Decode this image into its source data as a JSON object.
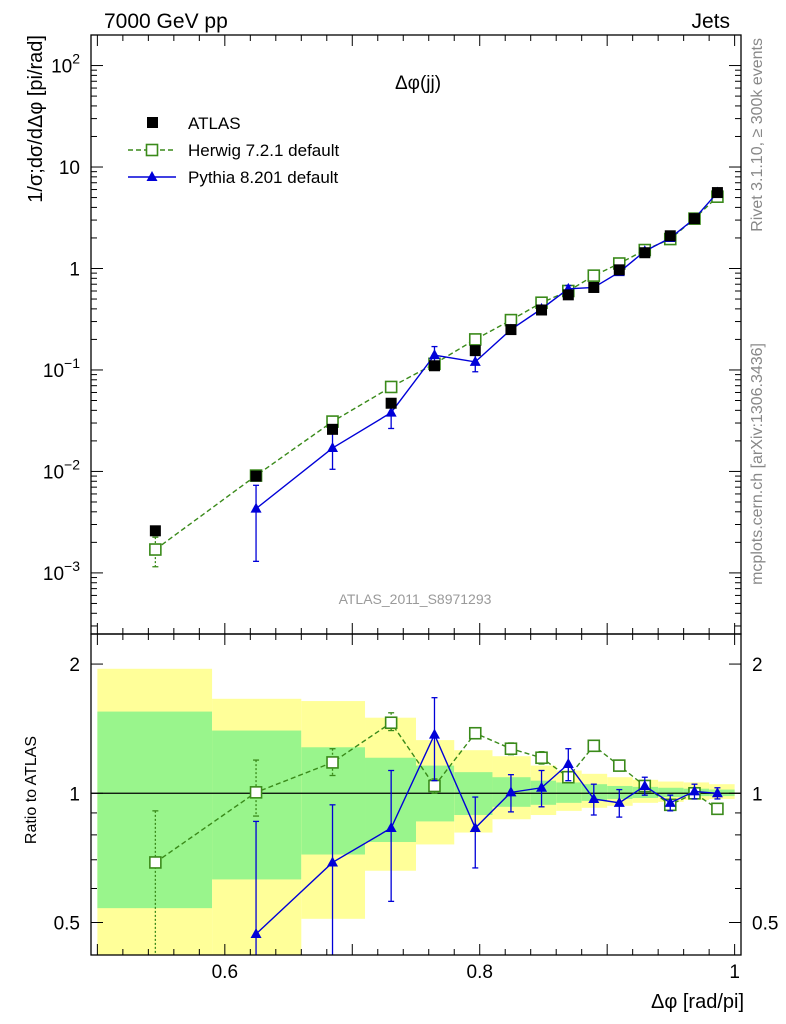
{
  "header": {
    "left": "7000 GeV pp",
    "right": "Jets",
    "observable": "Δφ(jj)",
    "watermark": "ATLAS_2011_S8971293",
    "side_top": "Rivet 3.1.10, ≥ 300k events",
    "side_bottom": "mcplots.cern.ch [arXiv:1306.3436]"
  },
  "colors": {
    "data": "#000000",
    "herwig": "#3a8a1a",
    "pythia": "#0000d8",
    "band_inner": "#99f58c",
    "band_outer": "#ffff99"
  },
  "legend": {
    "data": "ATLAS",
    "herwig": "Herwig 7.2.1 default",
    "pythia": "Pythia 8.201 default"
  },
  "chart_data": [
    {
      "type": "scatter",
      "panel": "main",
      "ylabel": "1/σ;dσ/dΔφ [pi/rad]",
      "yscale": "log",
      "ylim": [
        0.00025,
        200
      ],
      "xlim": [
        0.495,
        1.005
      ],
      "ytick_labels": [
        {
          "v": 0.001,
          "base": "10",
          "exp": "−3"
        },
        {
          "v": 0.01,
          "base": "10",
          "exp": "−2"
        },
        {
          "v": 0.1,
          "base": "10",
          "exp": "−1"
        },
        {
          "v": 1,
          "base": "1",
          "exp": ""
        },
        {
          "v": 10,
          "base": "10",
          "exp": ""
        },
        {
          "v": 100,
          "base": "10",
          "exp": "2"
        }
      ],
      "legend_position": "top-left",
      "series": [
        {
          "name": "ATLAS",
          "key": "data",
          "style": "square-filled",
          "x": [
            0.5455,
            0.6245,
            0.6845,
            0.7305,
            0.7645,
            0.7965,
            0.8245,
            0.8485,
            0.8695,
            0.8895,
            0.9095,
            0.9295,
            0.9495,
            0.9685,
            0.9865
          ],
          "y": [
            0.0026,
            0.009,
            0.026,
            0.047,
            0.11,
            0.155,
            0.25,
            0.39,
            0.55,
            0.65,
            0.97,
            1.43,
            2.1,
            3.1,
            5.6
          ]
        },
        {
          "name": "Herwig 7.2.1 default",
          "key": "herwig",
          "style": "square-open-dashed",
          "x": [
            0.5455,
            0.6245,
            0.6845,
            0.7305,
            0.7645,
            0.7965,
            0.8245,
            0.8485,
            0.8695,
            0.8895,
            0.9095,
            0.9295,
            0.9495,
            0.9685,
            0.9865
          ],
          "y": [
            0.0017,
            0.0091,
            0.031,
            0.068,
            0.115,
            0.2,
            0.31,
            0.46,
            0.6,
            0.85,
            1.12,
            1.52,
            1.95,
            3.1,
            5.1
          ],
          "err_lo": [
            0.00055,
            0.001,
            0.003,
            0.004,
            0.006,
            0.01,
            0.015,
            0.02,
            0.02,
            0.03,
            0.04,
            0.05,
            0.06,
            0.08,
            0.1
          ],
          "err_hi": [
            0.00055,
            0.001,
            0.003,
            0.004,
            0.006,
            0.01,
            0.015,
            0.02,
            0.02,
            0.03,
            0.04,
            0.05,
            0.06,
            0.08,
            0.1
          ]
        },
        {
          "name": "Pythia 8.201 default",
          "key": "pythia",
          "style": "triangle-solid",
          "x": [
            0.6245,
            0.6845,
            0.7305,
            0.7645,
            0.7965,
            0.8245,
            0.8485,
            0.8695,
            0.8895,
            0.9095,
            0.9295,
            0.9495,
            0.9685,
            0.9865
          ],
          "y": [
            0.0043,
            0.017,
            0.038,
            0.14,
            0.12,
            0.25,
            0.4,
            0.63,
            0.65,
            0.92,
            1.48,
            2.0,
            3.1,
            5.6
          ],
          "err_lo": [
            0.003,
            0.0065,
            0.0115,
            0.03,
            0.024,
            0.025,
            0.03,
            0.05,
            0.05,
            0.06,
            0.07,
            0.07,
            0.1,
            0.15
          ],
          "err_hi": [
            0.003,
            0.0065,
            0.0115,
            0.03,
            0.024,
            0.025,
            0.03,
            0.05,
            0.05,
            0.06,
            0.07,
            0.07,
            0.1,
            0.15
          ]
        }
      ]
    },
    {
      "type": "scatter",
      "panel": "ratio",
      "ylabel": "Ratio to ATLAS",
      "xlabel": "Δφ [rad/pi]",
      "yscale": "log",
      "ylim": [
        0.42,
        2.35
      ],
      "xlim": [
        0.495,
        1.005
      ],
      "ytick_labels": [
        {
          "v": 0.5,
          "label": "0.5"
        },
        {
          "v": 1,
          "label": "1"
        },
        {
          "v": 2,
          "label": "2"
        }
      ],
      "xtick_labels": [
        {
          "v": 0.6,
          "label": "0.6"
        },
        {
          "v": 0.8,
          "label": "0.8"
        },
        {
          "v": 1,
          "label": "1"
        }
      ],
      "bands": {
        "edges": [
          0.5,
          0.59,
          0.66,
          0.71,
          0.75,
          0.78,
          0.81,
          0.84,
          0.86,
          0.88,
          0.9,
          0.92,
          0.94,
          0.96,
          0.98,
          1.0
        ],
        "inner_lo": [
          0.54,
          0.63,
          0.72,
          0.77,
          0.86,
          0.89,
          0.93,
          0.94,
          0.95,
          0.96,
          0.97,
          0.975,
          0.98,
          0.985,
          0.985
        ],
        "inner_hi": [
          1.55,
          1.4,
          1.28,
          1.21,
          1.16,
          1.12,
          1.09,
          1.07,
          1.06,
          1.05,
          1.04,
          1.035,
          1.03,
          1.025,
          1.02
        ],
        "outer_lo": [
          0.3,
          0.3,
          0.51,
          0.66,
          0.76,
          0.81,
          0.87,
          0.89,
          0.91,
          0.925,
          0.935,
          0.95,
          0.955,
          0.965,
          0.97
        ],
        "outer_hi": [
          1.95,
          1.66,
          1.64,
          1.5,
          1.33,
          1.26,
          1.22,
          1.16,
          1.13,
          1.11,
          1.09,
          1.075,
          1.065,
          1.06,
          1.05
        ]
      },
      "series": [
        {
          "name": "Herwig 7.2.1 default",
          "key": "herwig",
          "style": "square-open-dashed",
          "x": [
            0.5455,
            0.6245,
            0.6845,
            0.7305,
            0.7645,
            0.7965,
            0.8245,
            0.8485,
            0.8695,
            0.8895,
            0.9095,
            0.9295,
            0.9495,
            0.9685,
            0.9865
          ],
          "y": [
            0.69,
            1.005,
            1.18,
            1.46,
            1.04,
            1.38,
            1.27,
            1.21,
            1.09,
            1.29,
            1.16,
            1.04,
            0.94,
            1.0,
            0.92
          ],
          "err_lo": [
            0.31,
            0.12,
            0.08,
            0.06,
            0.04,
            0.04,
            0.04,
            0.04,
            0.03,
            0.03,
            0.03,
            0.03,
            0.02,
            0.02,
            0.02
          ],
          "err_hi": [
            0.22,
            0.19,
            0.09,
            0.08,
            0.04,
            0.04,
            0.04,
            0.04,
            0.03,
            0.03,
            0.03,
            0.03,
            0.02,
            0.02,
            0.02
          ]
        },
        {
          "name": "Pythia 8.201 default",
          "key": "pythia",
          "style": "triangle-solid",
          "x": [
            0.6245,
            0.6845,
            0.7305,
            0.7645,
            0.7965,
            0.8245,
            0.8485,
            0.8695,
            0.8895,
            0.9095,
            0.9295,
            0.9495,
            0.9685,
            0.9865
          ],
          "y": [
            0.47,
            0.69,
            0.83,
            1.37,
            0.83,
            1.005,
            1.03,
            1.17,
            0.97,
            0.95,
            1.04,
            0.95,
            1.01,
            1.0
          ],
          "err_lo": [
            0.35,
            0.27,
            0.27,
            0.3,
            0.16,
            0.1,
            0.1,
            0.1,
            0.08,
            0.07,
            0.05,
            0.04,
            0.04,
            0.03
          ],
          "err_hi": [
            0.39,
            0.25,
            0.3,
            0.3,
            0.15,
            0.1,
            0.1,
            0.1,
            0.08,
            0.07,
            0.05,
            0.04,
            0.04,
            0.03
          ]
        }
      ]
    }
  ]
}
